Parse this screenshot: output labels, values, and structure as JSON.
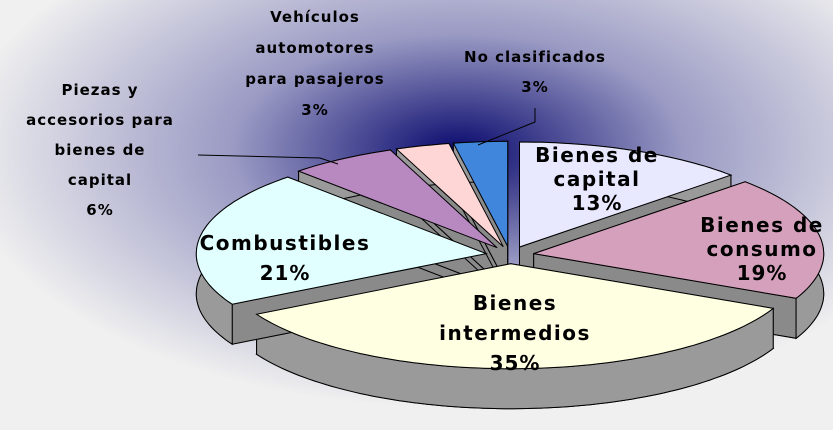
{
  "chart_data": {
    "type": "pie3d",
    "categories": [
      "Bienes de capital",
      "Bienes de consumo",
      "Bienes intermedios",
      "Combustibles",
      "Piezas y accesorios para bienes de capital",
      "Vehículos automotores para pasajeros",
      "No clasificados"
    ],
    "values": [
      13,
      19,
      35,
      21,
      6,
      3,
      3
    ],
    "value_labels": [
      "13%",
      "19%",
      "35%",
      "21%",
      "6%",
      "3%",
      "3%"
    ],
    "colors": [
      "#e8e8ff",
      "#d4a0bc",
      "#ffffe2",
      "#e2ffff",
      "#b888c0",
      "#ffd6d6",
      "#3f86dc"
    ]
  }
}
